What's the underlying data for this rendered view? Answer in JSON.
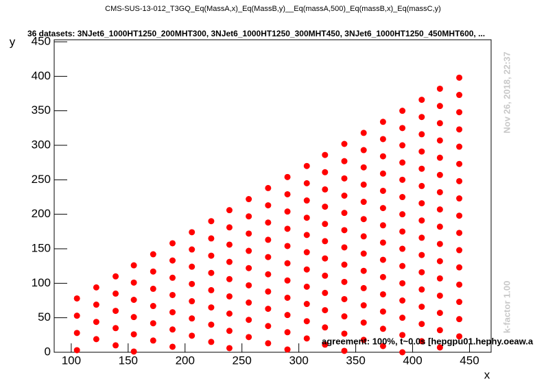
{
  "chart_data": {
    "type": "scatter",
    "title": "CMS-SUS-13-012_T3GQ_Eq(MassA,x)_Eq(MassB,y)__Eq(massA,500)_Eq(massB,x)_Eq(massC,y)",
    "subtitle": "36 datasets: 3NJet6_1000HT1250_200MHT300, 3NJet6_1000HT1250_300MHT450, 3NJet6_1000HT1250_450MHT600,  ...",
    "x_label": "x",
    "y_label": "y",
    "date_note": "Nov 26, 2018, 22:37",
    "kfactor_note": "k-factor 1.00",
    "agreement_note": "agreement: 100%, t~0.0s [hepgpu01.hephy.oeaw.a",
    "color": "#ff0000",
    "xlim": [
      85,
      469
    ],
    "ylim": [
      0,
      453
    ],
    "xticks": [
      100,
      150,
      200,
      250,
      300,
      350,
      400,
      450
    ],
    "yticks": [
      0,
      50,
      100,
      150,
      200,
      250,
      300,
      350,
      400,
      450
    ],
    "x": [
      105,
      105,
      105,
      105,
      122,
      122,
      122,
      122,
      139,
      139,
      139,
      139,
      139,
      155,
      155,
      155,
      155,
      155,
      155,
      172,
      172,
      172,
      172,
      172,
      172,
      189,
      189,
      189,
      189,
      189,
      189,
      189,
      206,
      206,
      206,
      206,
      206,
      206,
      206,
      223,
      223,
      223,
      223,
      223,
      223,
      223,
      223,
      239,
      239,
      239,
      239,
      239,
      239,
      239,
      239,
      239,
      256,
      256,
      256,
      256,
      256,
      256,
      256,
      256,
      256,
      273,
      273,
      273,
      273,
      273,
      273,
      273,
      273,
      273,
      273,
      290,
      290,
      290,
      290,
      290,
      290,
      290,
      290,
      290,
      290,
      290,
      307,
      307,
      307,
      307,
      307,
      307,
      307,
      307,
      307,
      307,
      307,
      323,
      323,
      323,
      323,
      323,
      323,
      323,
      323,
      323,
      323,
      323,
      323,
      340,
      340,
      340,
      340,
      340,
      340,
      340,
      340,
      340,
      340,
      340,
      340,
      340,
      357,
      357,
      357,
      357,
      357,
      357,
      357,
      357,
      357,
      357,
      357,
      357,
      357,
      374,
      374,
      374,
      374,
      374,
      374,
      374,
      374,
      374,
      374,
      374,
      374,
      374,
      374,
      391,
      391,
      391,
      391,
      391,
      391,
      391,
      391,
      391,
      391,
      391,
      391,
      391,
      391,
      391,
      408,
      408,
      408,
      408,
      408,
      408,
      408,
      408,
      408,
      408,
      408,
      408,
      408,
      408,
      408,
      424,
      424,
      424,
      424,
      424,
      424,
      424,
      424,
      424,
      424,
      424,
      424,
      424,
      424,
      424,
      424,
      441,
      441,
      441,
      441,
      441,
      441,
      441,
      441,
      441,
      441,
      441,
      441,
      441,
      441,
      441,
      441
    ],
    "values": [
      3,
      28,
      53,
      78,
      19,
      44,
      69,
      94,
      10,
      35,
      60,
      85,
      110,
      1,
      26,
      51,
      76,
      101,
      126,
      17,
      42,
      67,
      92,
      117,
      142,
      8,
      33,
      58,
      83,
      108,
      133,
      158,
      24,
      49,
      74,
      99,
      124,
      149,
      174,
      15,
      40,
      65,
      90,
      115,
      140,
      165,
      190,
      6,
      31,
      56,
      81,
      106,
      131,
      156,
      181,
      206,
      22,
      47,
      72,
      97,
      122,
      147,
      172,
      197,
      222,
      13,
      38,
      63,
      88,
      113,
      138,
      163,
      188,
      213,
      238,
      4,
      29,
      54,
      79,
      104,
      129,
      154,
      179,
      204,
      229,
      254,
      20,
      45,
      70,
      95,
      120,
      145,
      170,
      195,
      220,
      245,
      270,
      11,
      36,
      61,
      86,
      111,
      136,
      161,
      186,
      211,
      236,
      261,
      286,
      2,
      27,
      52,
      77,
      102,
      127,
      152,
      177,
      202,
      227,
      252,
      277,
      302,
      18,
      43,
      68,
      93,
      118,
      143,
      168,
      193,
      218,
      243,
      268,
      293,
      318,
      9,
      34,
      59,
      84,
      109,
      134,
      159,
      184,
      209,
      234,
      259,
      284,
      309,
      334,
      0,
      25,
      50,
      75,
      100,
      125,
      150,
      175,
      200,
      225,
      250,
      275,
      300,
      325,
      350,
      16,
      41,
      66,
      91,
      116,
      141,
      166,
      191,
      216,
      241,
      266,
      291,
      316,
      341,
      366,
      7,
      32,
      57,
      82,
      107,
      132,
      157,
      182,
      207,
      232,
      257,
      282,
      307,
      332,
      357,
      382,
      23,
      48,
      73,
      98,
      123,
      148,
      173,
      198,
      223,
      248,
      273,
      298,
      323,
      348,
      373,
      398
    ]
  }
}
